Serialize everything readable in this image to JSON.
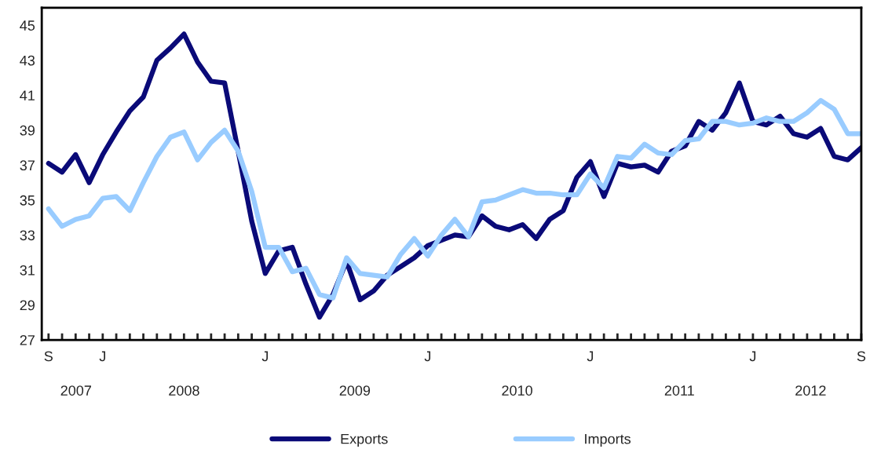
{
  "chart_data": {
    "type": "line",
    "categories": [
      "S",
      null,
      null,
      null,
      "J",
      null,
      null,
      null,
      null,
      null,
      null,
      null,
      null,
      null,
      null,
      null,
      "J",
      null,
      null,
      null,
      null,
      null,
      null,
      null,
      null,
      null,
      null,
      null,
      "J",
      null,
      null,
      null,
      null,
      null,
      null,
      null,
      null,
      null,
      null,
      null,
      "J",
      null,
      null,
      null,
      null,
      null,
      null,
      null,
      null,
      null,
      null,
      null,
      "J",
      null,
      null,
      null,
      null,
      null,
      null,
      null,
      "S"
    ],
    "series": [
      {
        "name": "Exports",
        "color": "#0a0a78",
        "values": [
          37.1,
          36.6,
          37.6,
          36.0,
          37.6,
          38.9,
          40.1,
          40.9,
          43.0,
          43.7,
          44.5,
          42.9,
          41.8,
          41.7,
          37.8,
          33.8,
          30.8,
          32.1,
          32.3,
          30.2,
          28.3,
          29.6,
          31.5,
          29.3,
          29.8,
          30.7,
          31.2,
          31.7,
          32.4,
          32.7,
          33.0,
          32.9,
          34.1,
          33.5,
          33.3,
          33.6,
          32.8,
          33.9,
          34.4,
          36.3,
          37.2,
          35.2,
          37.1,
          36.9,
          37.0,
          36.6,
          37.8,
          38.1,
          39.5,
          39.0,
          40.0,
          41.7,
          39.5,
          39.3,
          39.8,
          38.8,
          38.6,
          39.1,
          37.5,
          37.3,
          38.0
        ]
      },
      {
        "name": "Imports",
        "color": "#99ccff",
        "values": [
          34.5,
          33.5,
          33.9,
          34.1,
          35.1,
          35.2,
          34.4,
          36.0,
          37.5,
          38.6,
          38.9,
          37.3,
          38.3,
          39.0,
          37.8,
          35.5,
          32.3,
          32.3,
          30.9,
          31.1,
          29.6,
          29.4,
          31.7,
          30.8,
          30.7,
          30.6,
          31.9,
          32.8,
          31.8,
          33.0,
          33.9,
          32.9,
          34.9,
          35.0,
          35.3,
          35.6,
          35.4,
          35.4,
          35.3,
          35.3,
          36.5,
          35.7,
          37.5,
          37.4,
          38.2,
          37.7,
          37.6,
          38.4,
          38.5,
          39.5,
          39.5,
          39.3,
          39.4,
          39.7,
          39.5,
          39.5,
          40.0,
          40.7,
          40.2,
          38.8,
          38.8
        ]
      }
    ],
    "x2lim": [
      "2007-08-16",
      "2012-09-01"
    ],
    "x2ticks": [
      {
        "value": "2007-11-01",
        "label": "2007"
      },
      {
        "value": "2008-07-01",
        "label": "2008"
      },
      {
        "value": "2009-07-20",
        "label": "2009"
      },
      {
        "value": "2010-07-20",
        "label": "2010"
      },
      {
        "value": "2011-07-20",
        "label": "2011"
      },
      {
        "value": "2012-05-10",
        "label": "2012"
      }
    ],
    "ylim": [
      27,
      46
    ],
    "yticks": [
      27,
      29,
      31,
      33,
      35,
      37,
      39,
      41,
      43,
      45
    ],
    "grid": false,
    "legend": "bottom",
    "marker": "none",
    "line_style": "solid"
  }
}
